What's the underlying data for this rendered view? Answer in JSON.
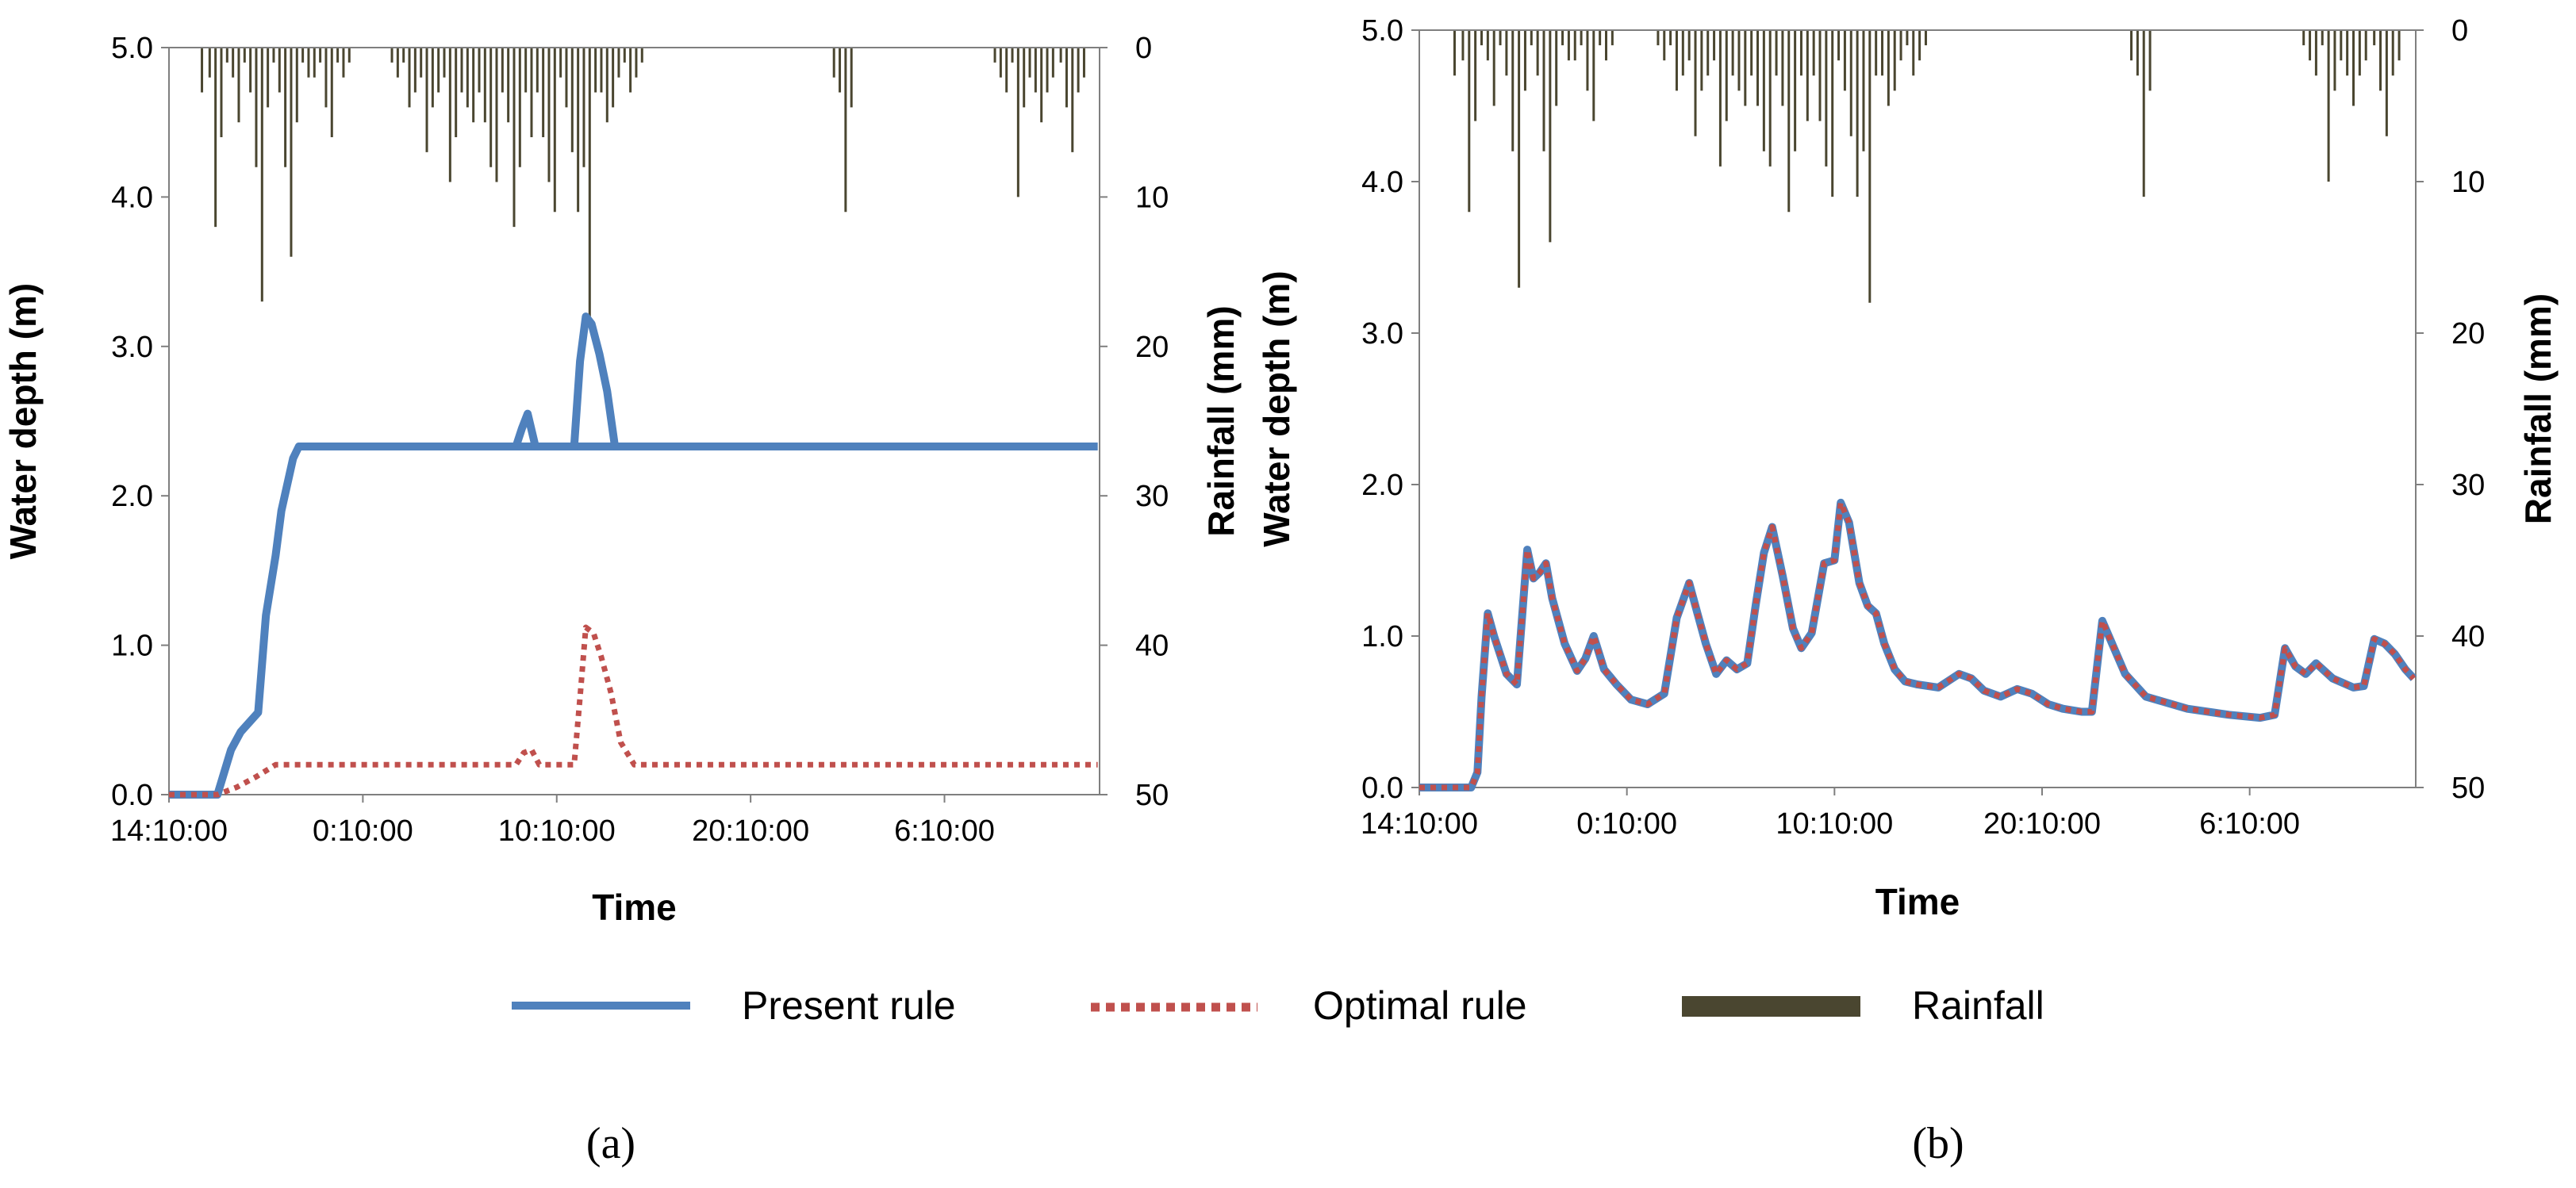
{
  "legend": {
    "items": [
      {
        "label": "Present rule",
        "color": "#4f81bd",
        "style": "solid"
      },
      {
        "label": "Optimal rule",
        "color": "#c0504d",
        "style": "dotted"
      },
      {
        "label": "Rainfall",
        "color": "#4a4630",
        "style": "bar"
      }
    ]
  },
  "chart_data": [
    {
      "type": "line",
      "panel_label": "(a)",
      "xlabel": "Time",
      "ylabel": "Water depth (m)",
      "y2label": "Rainfall (mm)",
      "ylim": [
        0,
        5
      ],
      "y2lim": [
        0,
        50
      ],
      "y2_inverted": true,
      "x_unit": "hours from 14:10:00",
      "xlim": [
        0,
        48
      ],
      "x_ticks": [
        {
          "x": 0,
          "label": "14:10:00"
        },
        {
          "x": 10,
          "label": "0:10:00"
        },
        {
          "x": 20,
          "label": "10:10:00"
        },
        {
          "x": 30,
          "label": "20:10:00"
        },
        {
          "x": 40,
          "label": "6:10:00"
        }
      ],
      "y_ticks": [
        "0.0",
        "1.0",
        "2.0",
        "3.0",
        "4.0",
        "5.0"
      ],
      "y2_ticks": [
        "0",
        "10",
        "20",
        "30",
        "40",
        "50"
      ],
      "series": [
        {
          "name": "Present rule",
          "color": "#4f81bd",
          "style": "solid",
          "x": [
            0,
            2.5,
            3.2,
            3.7,
            4.6,
            5.0,
            5.5,
            5.8,
            6.4,
            6.7,
            47.9
          ],
          "y": [
            0,
            0,
            0.3,
            0.42,
            0.55,
            1.2,
            1.6,
            1.9,
            2.25,
            2.33,
            2.33
          ],
          "x2": [
            17.9,
            18.2,
            18.5,
            18.9,
            20.9,
            21.2,
            21.5,
            21.8,
            22.2,
            22.6,
            23.0,
            47.9
          ],
          "y2": [
            2.33,
            2.45,
            2.55,
            2.33,
            2.33,
            2.9,
            3.2,
            3.15,
            2.95,
            2.7,
            2.33,
            2.33
          ]
        },
        {
          "name": "Optimal rule",
          "color": "#c0504d",
          "style": "dotted",
          "x": [
            0,
            2.5,
            3.5,
            4.5,
            5.5,
            17.9,
            18.3,
            18.7,
            19.1,
            20.9,
            21.2,
            21.5,
            21.9,
            22.3,
            22.8,
            23.3,
            24.0,
            47.9
          ],
          "y": [
            0,
            0,
            0.05,
            0.12,
            0.2,
            0.2,
            0.28,
            0.3,
            0.2,
            0.2,
            0.65,
            1.12,
            1.08,
            0.92,
            0.68,
            0.35,
            0.2,
            0.2
          ]
        }
      ],
      "rainfall": {
        "name": "Rainfall",
        "color": "#4a4630",
        "x": [
          1.7,
          2.1,
          2.4,
          2.7,
          3.0,
          3.3,
          3.6,
          3.9,
          4.2,
          4.5,
          4.8,
          5.1,
          5.4,
          5.7,
          6.0,
          6.3,
          6.6,
          6.9,
          7.2,
          7.5,
          7.8,
          8.1,
          8.4,
          8.7,
          9.0,
          9.3,
          11.5,
          11.8,
          12.1,
          12.4,
          12.7,
          13.0,
          13.3,
          13.6,
          13.9,
          14.2,
          14.5,
          14.8,
          15.1,
          15.4,
          15.7,
          16.0,
          16.3,
          16.6,
          16.9,
          17.2,
          17.5,
          17.8,
          18.1,
          18.4,
          18.7,
          19.0,
          19.3,
          19.6,
          19.9,
          20.2,
          20.5,
          20.8,
          21.1,
          21.4,
          21.7,
          22.0,
          22.3,
          22.6,
          22.9,
          23.2,
          23.5,
          23.8,
          24.1,
          24.4,
          34.3,
          34.6,
          34.9,
          35.2,
          42.6,
          42.9,
          43.2,
          43.5,
          43.8,
          44.1,
          44.4,
          44.7,
          45.0,
          45.3,
          45.6,
          46.0,
          46.3,
          46.6,
          46.9,
          47.2
        ],
        "y": [
          3,
          2,
          12,
          6,
          1,
          2,
          5,
          1,
          3,
          8,
          17,
          4,
          1,
          3,
          8,
          14,
          5,
          1,
          2,
          2,
          1,
          4,
          6,
          1,
          2,
          1,
          1,
          2,
          1,
          4,
          3,
          2,
          7,
          4,
          3,
          2,
          9,
          6,
          3,
          4,
          5,
          3,
          5,
          8,
          9,
          3,
          5,
          12,
          8,
          3,
          6,
          3,
          6,
          9,
          11,
          2,
          4,
          7,
          11,
          8,
          18,
          3,
          3,
          5,
          4,
          2,
          1,
          3,
          2,
          1,
          2,
          3,
          11,
          4,
          1,
          2,
          3,
          1,
          10,
          4,
          2,
          3,
          5,
          3,
          2,
          1,
          4,
          7,
          3,
          2
        ]
      }
    },
    {
      "type": "line",
      "panel_label": "(b)",
      "xlabel": "Time",
      "ylabel": "Water depth (m)",
      "y2label": "Rainfall (mm)",
      "ylim": [
        0,
        5
      ],
      "y2lim": [
        0,
        50
      ],
      "y2_inverted": true,
      "x_unit": "hours from 14:10:00",
      "xlim": [
        0,
        48
      ],
      "x_ticks": [
        {
          "x": 0,
          "label": "14:10:00"
        },
        {
          "x": 10,
          "label": "0:10:00"
        },
        {
          "x": 20,
          "label": "10:10:00"
        },
        {
          "x": 30,
          "label": "20:10:00"
        },
        {
          "x": 40,
          "label": "6:10:00"
        }
      ],
      "y_ticks": [
        "0.0",
        "1.0",
        "2.0",
        "3.0",
        "4.0",
        "5.0"
      ],
      "y2_ticks": [
        "0",
        "10",
        "20",
        "30",
        "40",
        "50"
      ],
      "series": [
        {
          "name": "Present rule",
          "color": "#4f81bd",
          "style": "solid",
          "x": [
            0,
            2.5,
            2.8,
            3.0,
            3.3,
            3.6,
            4.2,
            4.7,
            5.2,
            5.5,
            5.8,
            6.1,
            6.4,
            7.0,
            7.6,
            8.0,
            8.4,
            8.9,
            9.5,
            10.2,
            11.0,
            11.8,
            12.4,
            13.0,
            13.4,
            13.8,
            14.3,
            14.8,
            15.3,
            15.8,
            16.2,
            16.6,
            17.0,
            17.5,
            18.0,
            18.4,
            18.9,
            19.5,
            20.0,
            20.3,
            20.7,
            21.2,
            21.6,
            22.0,
            22.4,
            22.9,
            23.4,
            24.0,
            25.0,
            26.0,
            26.6,
            27.2,
            28.0,
            28.8,
            29.5,
            30.3,
            31.0,
            31.9,
            32.4,
            32.9,
            34.0,
            35.0,
            37.0,
            39.0,
            40.5,
            41.2,
            41.7,
            42.2,
            42.7,
            43.2,
            44.0,
            45.0,
            45.5,
            46.0,
            46.5,
            47.0,
            47.5,
            47.9
          ],
          "y": [
            0,
            0,
            0.1,
            0.6,
            1.15,
            1.0,
            0.75,
            0.68,
            1.57,
            1.38,
            1.42,
            1.48,
            1.25,
            0.95,
            0.77,
            0.85,
            1.0,
            0.78,
            0.68,
            0.58,
            0.55,
            0.62,
            1.12,
            1.35,
            1.15,
            0.95,
            0.75,
            0.84,
            0.78,
            0.82,
            1.2,
            1.55,
            1.72,
            1.4,
            1.05,
            0.92,
            1.02,
            1.48,
            1.5,
            1.88,
            1.75,
            1.35,
            1.2,
            1.15,
            0.95,
            0.78,
            0.7,
            0.68,
            0.66,
            0.75,
            0.72,
            0.64,
            0.6,
            0.65,
            0.62,
            0.55,
            0.52,
            0.5,
            0.5,
            1.1,
            0.75,
            0.6,
            0.52,
            0.48,
            0.46,
            0.48,
            0.92,
            0.8,
            0.75,
            0.82,
            0.72,
            0.66,
            0.67,
            0.98,
            0.95,
            0.88,
            0.78,
            0.72
          ]
        },
        {
          "name": "Optimal rule",
          "color": "#c0504d",
          "style": "dotted",
          "same_as": "Present rule"
        }
      ],
      "rainfall": {
        "name": "Rainfall",
        "color": "#4a4630",
        "x": [
          1.7,
          2.1,
          2.4,
          2.7,
          3.0,
          3.3,
          3.6,
          3.9,
          4.2,
          4.5,
          4.8,
          5.1,
          5.4,
          5.7,
          6.0,
          6.3,
          6.6,
          6.9,
          7.2,
          7.5,
          7.8,
          8.1,
          8.4,
          8.7,
          9.0,
          9.3,
          11.5,
          11.8,
          12.1,
          12.4,
          12.7,
          13.0,
          13.3,
          13.6,
          13.9,
          14.2,
          14.5,
          14.8,
          15.1,
          15.4,
          15.7,
          16.0,
          16.3,
          16.6,
          16.9,
          17.2,
          17.5,
          17.8,
          18.1,
          18.4,
          18.7,
          19.0,
          19.3,
          19.6,
          19.9,
          20.2,
          20.5,
          20.8,
          21.1,
          21.4,
          21.7,
          22.0,
          22.3,
          22.6,
          22.9,
          23.2,
          23.5,
          23.8,
          24.1,
          24.4,
          34.3,
          34.6,
          34.9,
          35.2,
          42.6,
          42.9,
          43.2,
          43.5,
          43.8,
          44.1,
          44.4,
          44.7,
          45.0,
          45.3,
          45.6,
          46.0,
          46.3,
          46.6,
          46.9,
          47.2
        ],
        "y": [
          3,
          2,
          12,
          6,
          1,
          2,
          5,
          1,
          3,
          8,
          17,
          4,
          1,
          3,
          8,
          14,
          5,
          1,
          2,
          2,
          1,
          4,
          6,
          1,
          2,
          1,
          1,
          2,
          1,
          4,
          3,
          2,
          7,
          4,
          3,
          2,
          9,
          6,
          3,
          4,
          5,
          3,
          5,
          8,
          9,
          3,
          5,
          12,
          8,
          3,
          6,
          3,
          6,
          9,
          11,
          2,
          4,
          7,
          11,
          8,
          18,
          3,
          3,
          5,
          4,
          2,
          1,
          3,
          2,
          1,
          2,
          3,
          11,
          4,
          1,
          2,
          3,
          1,
          10,
          4,
          2,
          3,
          5,
          3,
          2,
          1,
          4,
          7,
          3,
          2
        ]
      }
    }
  ]
}
